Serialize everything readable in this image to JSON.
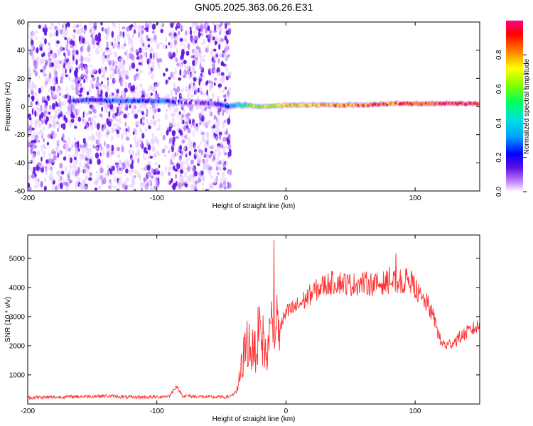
{
  "figure": {
    "title": "GN05.2025.363.06.26.E31"
  },
  "spectrogram": {
    "chart_data": {
      "type": "heatmap",
      "title": "GN05.2025.363.06.26.E31",
      "xlabel": "Height of straight line (km)",
      "ylabel": "Frequency (Hz)",
      "xlim": [
        -200,
        150
      ],
      "ylim": [
        -60,
        60
      ],
      "xticks": [
        -200,
        -100,
        0,
        100
      ],
      "yticks": [
        -60,
        -40,
        -20,
        0,
        20,
        40,
        60
      ],
      "noise_region_km": [
        -200,
        -43
      ],
      "signal_track": {
        "x": [
          -165,
          -150,
          -135,
          -120,
          -105,
          -95,
          -85,
          -70,
          -55,
          -45,
          -40,
          -30,
          -20,
          -10,
          0,
          20,
          40,
          60,
          80,
          100,
          120,
          150
        ],
        "freq_hz": [
          4,
          5,
          4,
          4,
          4,
          4,
          3,
          3,
          2,
          0,
          1,
          1,
          0,
          0,
          1,
          1,
          1,
          1,
          2,
          2,
          2,
          2
        ],
        "amplitude": [
          0.25,
          0.25,
          0.3,
          0.25,
          0.3,
          0.35,
          0.15,
          0.1,
          0.2,
          0.3,
          0.45,
          0.6,
          0.7,
          0.7,
          0.75,
          0.8,
          0.85,
          0.85,
          0.9,
          0.9,
          0.95,
          0.95
        ]
      }
    },
    "colorbar": {
      "label": "Normalized spectral amplitude",
      "ticks": [
        "0.0",
        "0.2",
        "0.4",
        "0.6",
        "0.8"
      ],
      "colors": [
        "#ffffff",
        "#c080ff",
        "#6010e0",
        "#0000ff",
        "#00a0ff",
        "#00e0e0",
        "#00ff60",
        "#80ff00",
        "#ffff00",
        "#ff8000",
        "#ff0000",
        "#ff0080"
      ]
    }
  },
  "snr": {
    "chart_data": {
      "type": "line",
      "xlabel": "Height of straight line (km)",
      "ylabel": "SNR (10 * v/v)",
      "xlim": [
        -200,
        150
      ],
      "ylim": [
        0,
        5800
      ],
      "xticks": [
        -200,
        -100,
        0,
        100
      ],
      "yticks": [
        1000,
        2000,
        3000,
        4000,
        5000
      ],
      "color": "#ff3030",
      "series": [
        {
          "name": "SNR",
          "x": [
            -200,
            -180,
            -160,
            -140,
            -120,
            -100,
            -90,
            -85,
            -80,
            -60,
            -45,
            -38,
            -33,
            -30,
            -25,
            -20,
            -15,
            -10,
            -5,
            0,
            10,
            20,
            30,
            40,
            50,
            60,
            70,
            80,
            90,
            95,
            100,
            105,
            110,
            115,
            120,
            125,
            130,
            140,
            150
          ],
          "y": [
            220,
            230,
            260,
            280,
            230,
            240,
            280,
            620,
            280,
            240,
            240,
            400,
            1600,
            2200,
            1700,
            2600,
            1600,
            3000,
            2600,
            3100,
            3400,
            3800,
            4100,
            4200,
            4100,
            4150,
            4100,
            4200,
            4150,
            4300,
            4000,
            3600,
            3400,
            2900,
            2100,
            2000,
            2150,
            2450,
            2700
          ]
        }
      ]
    }
  }
}
